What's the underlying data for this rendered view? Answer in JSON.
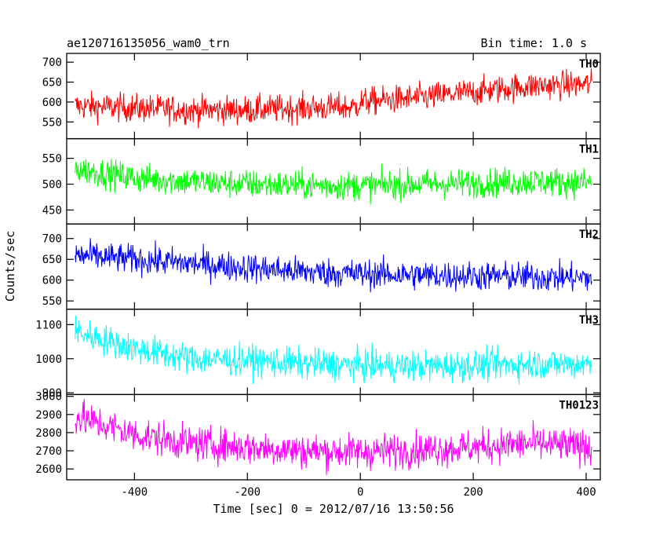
{
  "header": {
    "title": "ae120716135056_wam0_trn",
    "bin_time": "Bin time: 1.0 s"
  },
  "chart_data": {
    "type": "line",
    "xlabel": "Time [sec] 0 = 2012/07/16 13:50:56",
    "ylabel": "Counts/sec",
    "xlim": [
      -520,
      425
    ],
    "xticks": [
      -400,
      -200,
      0,
      200,
      400
    ],
    "x_range": [
      -505,
      410
    ],
    "sampling_interval_s": 1.0,
    "grid": false,
    "panels": [
      {
        "name": "TH0",
        "color": "#ff0000",
        "ylim": [
          508,
          722
        ],
        "yticks": [
          550,
          600,
          650,
          700
        ],
        "trend": [
          [
            -505,
            590
          ],
          [
            -400,
            585
          ],
          [
            -300,
            580
          ],
          [
            -200,
            580
          ],
          [
            -100,
            585
          ],
          [
            -10,
            587
          ],
          [
            0,
            600
          ],
          [
            100,
            610
          ],
          [
            200,
            625
          ],
          [
            300,
            640
          ],
          [
            410,
            645
          ]
        ],
        "noise_amplitude": 35
      },
      {
        "name": "TH1",
        "color": "#00ff00",
        "ylim": [
          423,
          588
        ],
        "yticks": [
          450,
          500,
          550
        ],
        "trend": [
          [
            -505,
            530
          ],
          [
            -400,
            512
          ],
          [
            -300,
            505
          ],
          [
            -200,
            500
          ],
          [
            -100,
            498
          ],
          [
            0,
            497
          ],
          [
            100,
            500
          ],
          [
            200,
            502
          ],
          [
            300,
            505
          ],
          [
            410,
            503
          ]
        ],
        "noise_amplitude": 28
      },
      {
        "name": "TH2",
        "color": "#0000ff",
        "ylim": [
          530,
          735
        ],
        "yticks": [
          550,
          600,
          650,
          700
        ],
        "trend": [
          [
            -505,
            660
          ],
          [
            -400,
            650
          ],
          [
            -300,
            640
          ],
          [
            -200,
            630
          ],
          [
            -100,
            620
          ],
          [
            0,
            615
          ],
          [
            100,
            612
          ],
          [
            200,
            610
          ],
          [
            300,
            608
          ],
          [
            410,
            605
          ]
        ],
        "noise_amplitude": 35
      },
      {
        "name": "TH3",
        "color": "#00ffff",
        "ylim": [
          895,
          1145
        ],
        "yticks": [
          900,
          1000,
          1100
        ],
        "trend": [
          [
            -505,
            1080
          ],
          [
            -400,
            1030
          ],
          [
            -300,
            1000
          ],
          [
            -200,
            995
          ],
          [
            -100,
            985
          ],
          [
            0,
            980
          ],
          [
            100,
            978
          ],
          [
            200,
            980
          ],
          [
            300,
            985
          ],
          [
            410,
            985
          ]
        ],
        "noise_amplitude": 45
      },
      {
        "name": "TH0123",
        "color": "#ff00ff",
        "ylim": [
          2540,
          3010
        ],
        "yticks": [
          2600,
          2700,
          2800,
          2900,
          3000
        ],
        "trend": [
          [
            -505,
            2890
          ],
          [
            -400,
            2790
          ],
          [
            -300,
            2740
          ],
          [
            -200,
            2720
          ],
          [
            -100,
            2700
          ],
          [
            0,
            2695
          ],
          [
            100,
            2705
          ],
          [
            200,
            2720
          ],
          [
            300,
            2740
          ],
          [
            410,
            2720
          ]
        ],
        "noise_amplitude": 95
      }
    ]
  }
}
